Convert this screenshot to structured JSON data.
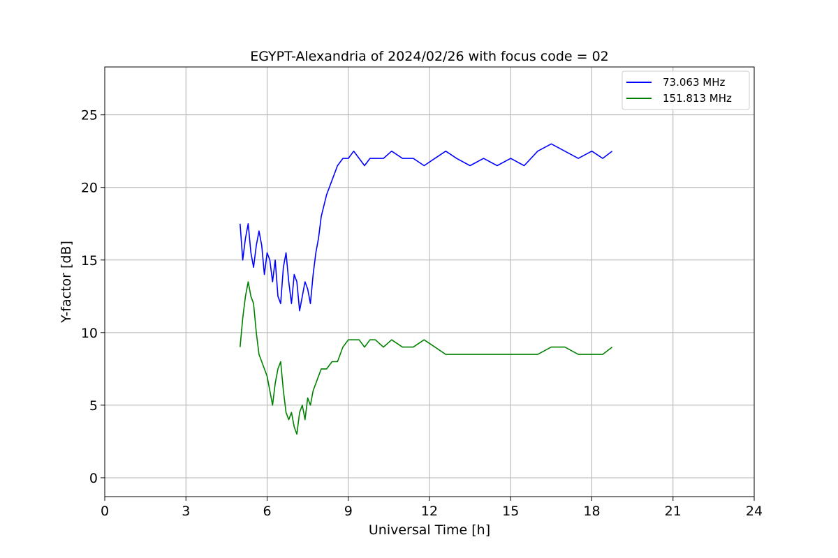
{
  "chart_data": {
    "type": "line",
    "title": "EGYPT-Alexandria of 2024/02/26 with focus code = 02",
    "xlabel": "Universal Time [h]",
    "ylabel": "Y-factor [dB]",
    "xlim": [
      0,
      24
    ],
    "ylim": [
      -1.3,
      28.3
    ],
    "xticks": [
      0,
      3,
      6,
      9,
      12,
      15,
      18,
      21,
      24
    ],
    "yticks": [
      0,
      5,
      10,
      15,
      20,
      25
    ],
    "grid": true,
    "legend_position": "top-right",
    "series": [
      {
        "name": "  73.063 MHz",
        "color": "#0000ff",
        "x": [
          5.0,
          5.1,
          5.2,
          5.3,
          5.4,
          5.5,
          5.6,
          5.7,
          5.8,
          5.9,
          6.0,
          6.1,
          6.2,
          6.3,
          6.4,
          6.5,
          6.6,
          6.7,
          6.8,
          6.9,
          7.0,
          7.1,
          7.2,
          7.3,
          7.4,
          7.5,
          7.6,
          7.7,
          7.8,
          7.9,
          8.0,
          8.2,
          8.4,
          8.6,
          8.8,
          9.0,
          9.2,
          9.4,
          9.6,
          9.8,
          10.0,
          10.3,
          10.6,
          11.0,
          11.4,
          11.8,
          12.2,
          12.6,
          13.0,
          13.5,
          14.0,
          14.5,
          15.0,
          15.5,
          16.0,
          16.5,
          17.0,
          17.5,
          18.0,
          18.4,
          18.75
        ],
        "values": [
          17.5,
          15.0,
          16.5,
          17.5,
          15.5,
          14.5,
          16.0,
          17.0,
          16.0,
          14.0,
          15.5,
          15.0,
          13.5,
          15.0,
          12.5,
          12.0,
          14.5,
          15.5,
          13.5,
          12.0,
          14.0,
          13.5,
          11.5,
          12.5,
          13.5,
          13.0,
          12.0,
          14.0,
          15.5,
          16.5,
          18.0,
          19.5,
          20.5,
          21.5,
          22.0,
          22.0,
          22.5,
          22.0,
          21.5,
          22.0,
          22.0,
          22.0,
          22.5,
          22.0,
          22.0,
          21.5,
          22.0,
          22.5,
          22.0,
          21.5,
          22.0,
          21.5,
          22.0,
          21.5,
          22.5,
          23.0,
          22.5,
          22.0,
          22.5,
          22.0,
          22.5
        ]
      },
      {
        "name": "151.813 MHz",
        "color": "#008000",
        "x": [
          5.0,
          5.1,
          5.2,
          5.3,
          5.4,
          5.5,
          5.6,
          5.7,
          5.8,
          5.9,
          6.0,
          6.1,
          6.2,
          6.3,
          6.4,
          6.5,
          6.6,
          6.7,
          6.8,
          6.9,
          7.0,
          7.1,
          7.2,
          7.3,
          7.4,
          7.5,
          7.6,
          7.7,
          7.8,
          7.9,
          8.0,
          8.2,
          8.4,
          8.6,
          8.8,
          9.0,
          9.2,
          9.4,
          9.6,
          9.8,
          10.0,
          10.3,
          10.6,
          11.0,
          11.4,
          11.8,
          12.2,
          12.6,
          13.0,
          13.5,
          14.0,
          14.5,
          15.0,
          15.5,
          16.0,
          16.5,
          17.0,
          17.5,
          18.0,
          18.4,
          18.75
        ],
        "values": [
          9.0,
          11.0,
          12.5,
          13.5,
          12.5,
          12.0,
          10.0,
          8.5,
          8.0,
          7.5,
          7.0,
          6.0,
          5.0,
          6.5,
          7.5,
          8.0,
          6.0,
          4.5,
          4.0,
          4.5,
          3.5,
          3.0,
          4.5,
          5.0,
          4.0,
          5.5,
          5.0,
          6.0,
          6.5,
          7.0,
          7.5,
          7.5,
          8.0,
          8.0,
          9.0,
          9.5,
          9.5,
          9.5,
          9.0,
          9.5,
          9.5,
          9.0,
          9.5,
          9.0,
          9.0,
          9.5,
          9.0,
          8.5,
          8.5,
          8.5,
          8.5,
          8.5,
          8.5,
          8.5,
          8.5,
          9.0,
          9.0,
          8.5,
          8.5,
          8.5,
          9.0
        ]
      }
    ]
  }
}
